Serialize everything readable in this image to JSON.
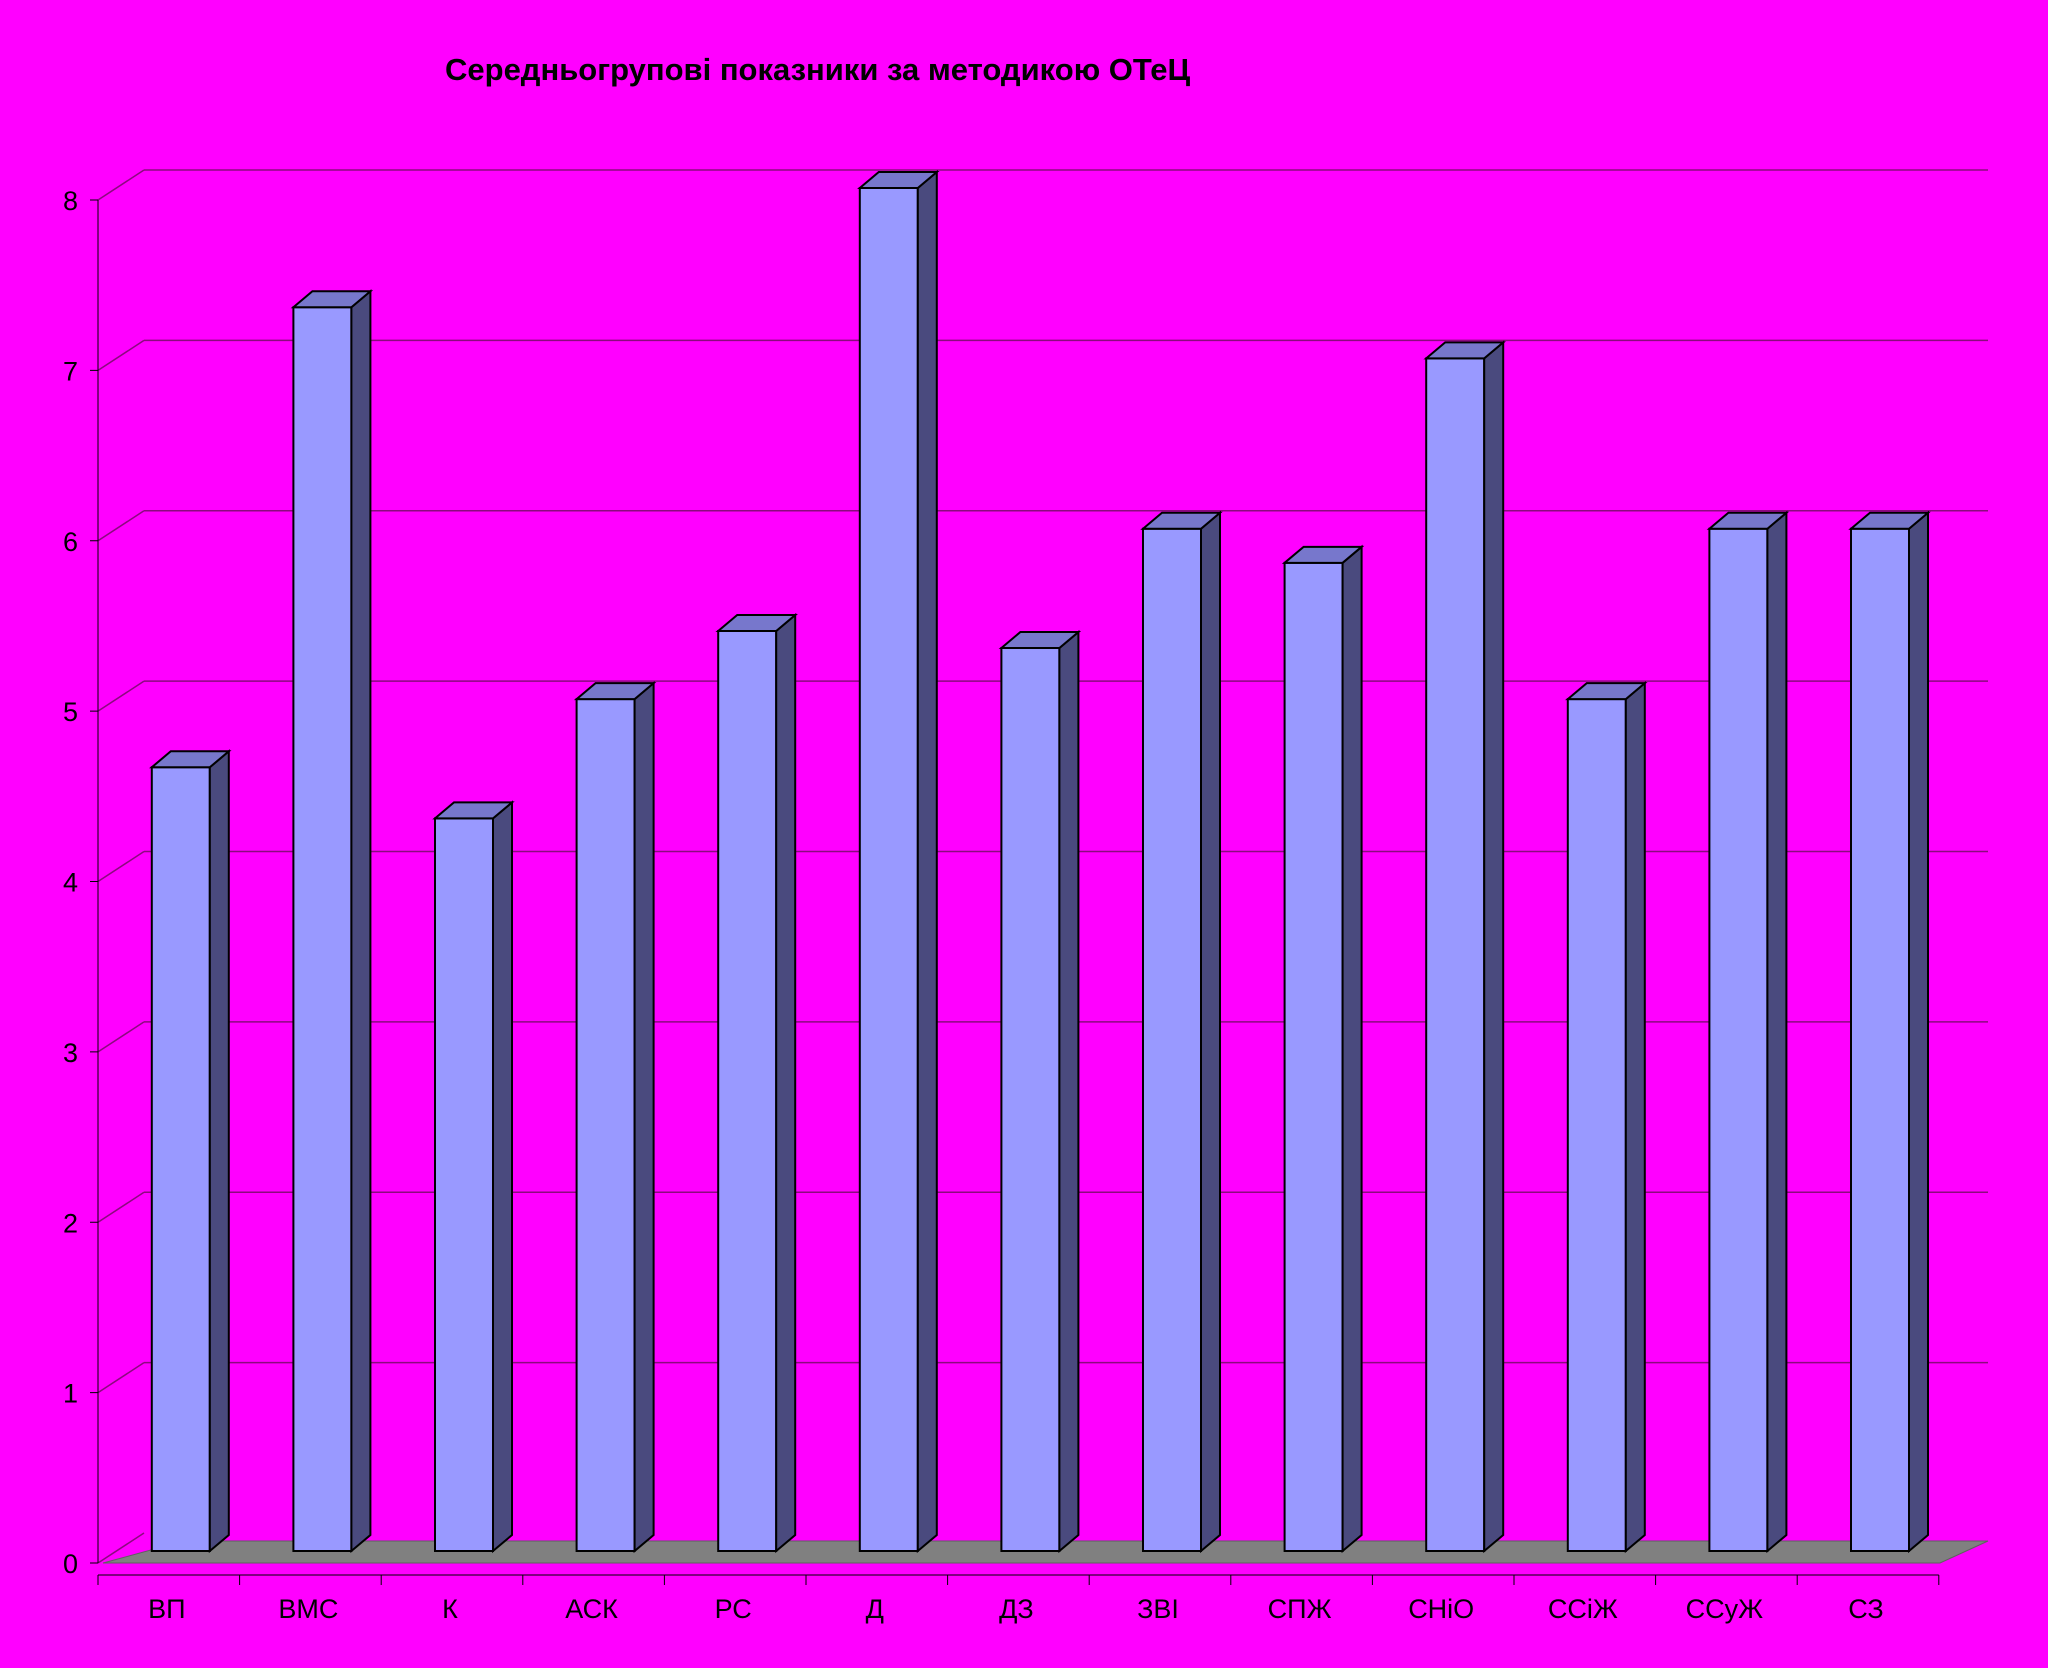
{
  "chart_data": {
    "type": "bar",
    "title": "Середньогрупові показники за методикою ОТеЦ",
    "categories": [
      "ВП",
      "ВМС",
      "К",
      "АСК",
      "РС",
      "Д",
      "ДЗ",
      "ЗВІ",
      "СПЖ",
      "СНіО",
      "ССіЖ",
      "ССуЖ",
      "СЗ"
    ],
    "values": [
      4.6,
      7.3,
      4.3,
      5.0,
      5.4,
      8.0,
      5.3,
      6.0,
      5.8,
      7.0,
      5.0,
      6.0,
      6.0
    ],
    "ylim": [
      0,
      8
    ],
    "yticks": [
      "0",
      "1",
      "2",
      "3",
      "4",
      "5",
      "6",
      "7",
      "8"
    ],
    "xlabel": "",
    "ylabel": "",
    "grid": true,
    "legend": "none",
    "style": "3d-column",
    "colors": {
      "background": "#FF00FF",
      "bar_front": "#9999FF",
      "bar_side": "#4A4A7E",
      "bar_top": "#7777CC",
      "floor": "#808080",
      "gridline": "#8B0A7E",
      "outline": "#000000"
    }
  }
}
